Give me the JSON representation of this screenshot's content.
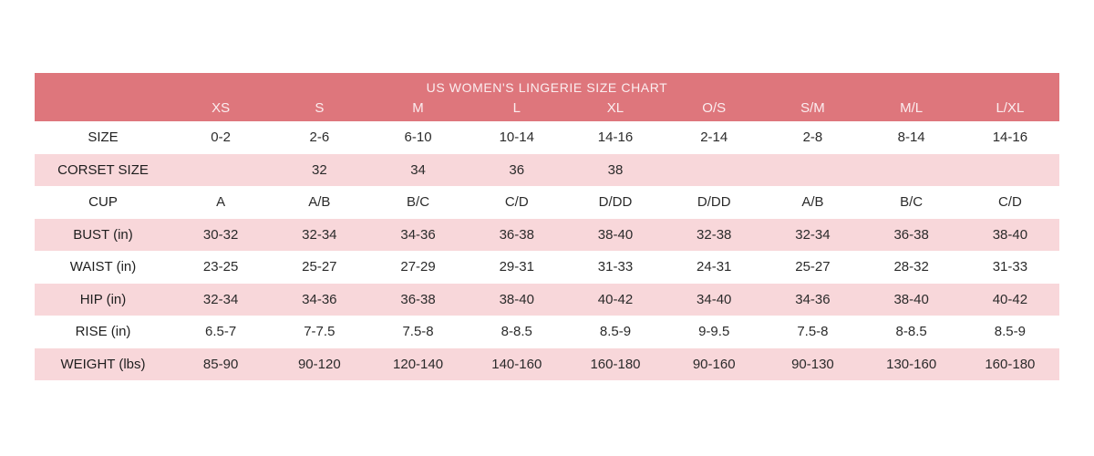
{
  "chart_data": {
    "type": "table",
    "title": "US WOMEN'S LINGERIE SIZE CHART",
    "columns": [
      "",
      "XS",
      "S",
      "M",
      "L",
      "XL",
      "O/S",
      "S/M",
      "M/L",
      "L/XL"
    ],
    "rows": [
      {
        "label": "SIZE",
        "values": [
          "0-2",
          "2-6",
          "6-10",
          "10-14",
          "14-16",
          "2-14",
          "2-8",
          "8-14",
          "14-16"
        ]
      },
      {
        "label": "CORSET SIZE",
        "values": [
          "",
          "32",
          "34",
          "36",
          "38",
          "",
          "",
          "",
          ""
        ]
      },
      {
        "label": "CUP",
        "values": [
          "A",
          "A/B",
          "B/C",
          "C/D",
          "D/DD",
          "D/DD",
          "A/B",
          "B/C",
          "C/D"
        ]
      },
      {
        "label": "BUST (in)",
        "values": [
          "30-32",
          "32-34",
          "34-36",
          "36-38",
          "38-40",
          "32-38",
          "32-34",
          "36-38",
          "38-40"
        ]
      },
      {
        "label": "WAIST (in)",
        "values": [
          "23-25",
          "25-27",
          "27-29",
          "29-31",
          "31-33",
          "24-31",
          "25-27",
          "28-32",
          "31-33"
        ]
      },
      {
        "label": "HIP (in)",
        "values": [
          "32-34",
          "34-36",
          "36-38",
          "38-40",
          "40-42",
          "34-40",
          "34-36",
          "38-40",
          "40-42"
        ]
      },
      {
        "label": "RISE (in)",
        "values": [
          "6.5-7",
          "7-7.5",
          "7.5-8",
          "8-8.5",
          "8.5-9",
          "9-9.5",
          "7.5-8",
          "8-8.5",
          "8.5-9"
        ]
      },
      {
        "label": "WEIGHT (lbs)",
        "values": [
          "85-90",
          "90-120",
          "120-140",
          "140-160",
          "160-180",
          "90-160",
          "90-130",
          "130-160",
          "160-180"
        ]
      }
    ],
    "layout": {
      "legend": "none",
      "grid": "off",
      "striping": "rows alternate white and light pink starting with white"
    }
  },
  "colors": {
    "header_bg": "#de767c",
    "header_text": "#fbeef0",
    "stripe_bg": "#f8d7da",
    "row_bg": "#ffffff",
    "body_text": "#2b2b2b",
    "page_bg": "#ffffff"
  }
}
